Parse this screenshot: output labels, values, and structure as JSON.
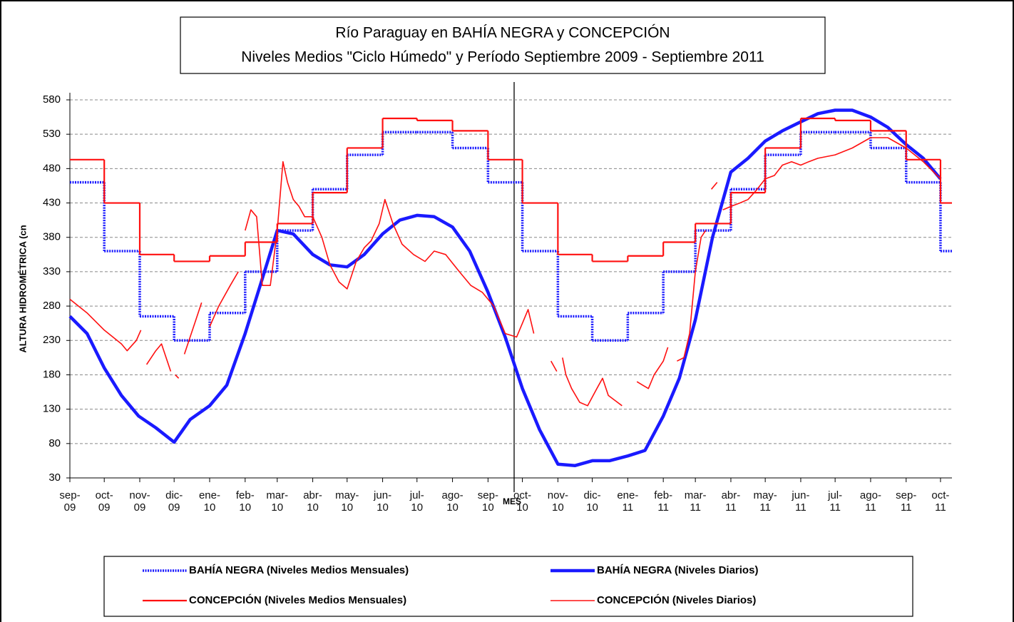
{
  "chart_data": {
    "type": "line",
    "title": [
      "Río Paraguay en BAHÍA NEGRA y CONCEPCIÓN",
      "Niveles Medios \"Ciclo Húmedo\" y Período Septiembre 2009 - Septiembre 2011"
    ],
    "x_label": "MES",
    "y_label": "ALTURA HIDROMÉTRICA (cn",
    "xlim": [
      0,
      770
    ],
    "xticks": [
      {
        "value": 0,
        "label": "sep-09"
      },
      {
        "value": 30,
        "label": "oct-09"
      },
      {
        "value": 61,
        "label": "nov-09"
      },
      {
        "value": 91,
        "label": "dic-09"
      },
      {
        "value": 122,
        "label": "ene-10"
      },
      {
        "value": 153,
        "label": "feb-10"
      },
      {
        "value": 181,
        "label": "mar-10"
      },
      {
        "value": 212,
        "label": "abr-10"
      },
      {
        "value": 242,
        "label": "may-10"
      },
      {
        "value": 273,
        "label": "jun-10"
      },
      {
        "value": 303,
        "label": "jul-10"
      },
      {
        "value": 334,
        "label": "ago-10"
      },
      {
        "value": 365,
        "label": "sep-10"
      },
      {
        "value": 395,
        "label": "oct-10"
      },
      {
        "value": 426,
        "label": "nov-10"
      },
      {
        "value": 456,
        "label": "dic-10"
      },
      {
        "value": 487,
        "label": "ene-11"
      },
      {
        "value": 518,
        "label": "feb-11"
      },
      {
        "value": 546,
        "label": "mar-11"
      },
      {
        "value": 577,
        "label": "abr-11"
      },
      {
        "value": 607,
        "label": "may-11"
      },
      {
        "value": 638,
        "label": "jun-11"
      },
      {
        "value": 668,
        "label": "jul-11"
      },
      {
        "value": 699,
        "label": "ago-11"
      },
      {
        "value": 730,
        "label": "sep-11"
      },
      {
        "value": 760,
        "label": "oct-11"
      }
    ],
    "ylim": [
      30,
      580
    ],
    "yticks": [
      30,
      80,
      130,
      180,
      230,
      280,
      330,
      380,
      430,
      480,
      530,
      580
    ],
    "grid": true,
    "series": [
      {
        "name": "BAHÍA NEGRA (Niveles Medios Mensuales)",
        "color": "#1a1aff",
        "step": true,
        "dotted": true,
        "x": [
          0,
          30,
          61,
          91,
          122,
          153,
          181,
          212,
          242,
          273,
          303,
          334,
          365,
          395,
          426,
          456,
          487,
          518,
          546,
          577,
          607,
          638,
          668,
          699,
          730,
          760
        ],
        "values": [
          460,
          360,
          265,
          230,
          270,
          330,
          390,
          450,
          500,
          533,
          533,
          510,
          460,
          360,
          265,
          230,
          270,
          330,
          390,
          450,
          500,
          533,
          533,
          510,
          460,
          360
        ]
      },
      {
        "name": "BAHÍA NEGRA (Niveles Diarios)",
        "color": "#1a1aff",
        "step": false,
        "dotted": false,
        "x": [
          0,
          15,
          30,
          45,
          60,
          75,
          91,
          105,
          122,
          137,
          153,
          168,
          181,
          195,
          212,
          227,
          242,
          257,
          273,
          288,
          303,
          318,
          334,
          349,
          365,
          380,
          395,
          410,
          426,
          441,
          456,
          471,
          487,
          502,
          518,
          532,
          546,
          561,
          577,
          592,
          607,
          622,
          638,
          653,
          668,
          683,
          699,
          714,
          730,
          745,
          760
        ],
        "values": [
          265,
          240,
          190,
          150,
          120,
          103,
          82,
          115,
          135,
          165,
          240,
          320,
          390,
          385,
          355,
          340,
          337,
          355,
          385,
          405,
          412,
          410,
          395,
          360,
          300,
          235,
          160,
          100,
          50,
          48,
          55,
          55,
          62,
          70,
          120,
          175,
          260,
          380,
          475,
          495,
          520,
          535,
          548,
          560,
          565,
          565,
          555,
          540,
          515,
          495,
          465
        ]
      },
      {
        "name": "CONCEPCIÓN (Niveles Medios Mensuales)",
        "color": "#ff1010",
        "step": true,
        "dotted": false,
        "x": [
          0,
          30,
          61,
          91,
          122,
          153,
          181,
          212,
          242,
          273,
          303,
          334,
          365,
          395,
          426,
          456,
          487,
          518,
          546,
          577,
          607,
          638,
          668,
          699,
          730,
          760
        ],
        "values": [
          493,
          430,
          355,
          345,
          353,
          373,
          400,
          445,
          510,
          553,
          550,
          535,
          493,
          430,
          355,
          345,
          353,
          373,
          400,
          445,
          510,
          553,
          550,
          535,
          493,
          430
        ]
      },
      {
        "name": "CONCEPCIÓN (Niveles Diarios)",
        "color": "#ff1010",
        "step": false,
        "dotted": false,
        "x": [
          0,
          15,
          30,
          45,
          50,
          58,
          62,
          null,
          67,
          75,
          80,
          88,
          null,
          92,
          95,
          null,
          100,
          110,
          115,
          null,
          122,
          130,
          140,
          147,
          null,
          153,
          158,
          163,
          168,
          175,
          181,
          186,
          190,
          195,
          200,
          205,
          212,
          220,
          227,
          235,
          242,
          250,
          257,
          263,
          270,
          275,
          282,
          290,
          300,
          310,
          318,
          328,
          340,
          350,
          360,
          370,
          380,
          390,
          395,
          400,
          405,
          null,
          420,
          425,
          null,
          430,
          433,
          438,
          445,
          452,
          460,
          465,
          470,
          478,
          482,
          null,
          495,
          500,
          505,
          510,
          518,
          522,
          null,
          530,
          536,
          541,
          546,
          551,
          555,
          null,
          560,
          565,
          null,
          570,
          577,
          585,
          592,
          600,
          607,
          615,
          622,
          630,
          638,
          645,
          653,
          668,
          683,
          699,
          714,
          730,
          745,
          760
        ],
        "values": [
          290,
          270,
          245,
          225,
          215,
          230,
          245,
          null,
          195,
          215,
          225,
          185,
          null,
          180,
          175,
          null,
          210,
          260,
          285,
          null,
          250,
          280,
          310,
          330,
          null,
          390,
          420,
          410,
          310,
          310,
          390,
          490,
          460,
          435,
          425,
          410,
          410,
          380,
          340,
          315,
          305,
          345,
          365,
          375,
          400,
          435,
          400,
          370,
          355,
          345,
          360,
          355,
          330,
          310,
          300,
          280,
          240,
          235,
          255,
          275,
          240,
          null,
          200,
          185,
          null,
          205,
          180,
          160,
          140,
          135,
          160,
          175,
          150,
          140,
          135,
          null,
          170,
          165,
          160,
          180,
          200,
          220,
          null,
          200,
          205,
          240,
          330,
          380,
          390,
          null,
          450,
          460,
          null,
          420,
          425,
          430,
          435,
          450,
          465,
          470,
          485,
          490,
          485,
          490,
          495,
          500,
          510,
          525,
          525,
          510,
          490,
          465
        ]
      }
    ]
  }
}
